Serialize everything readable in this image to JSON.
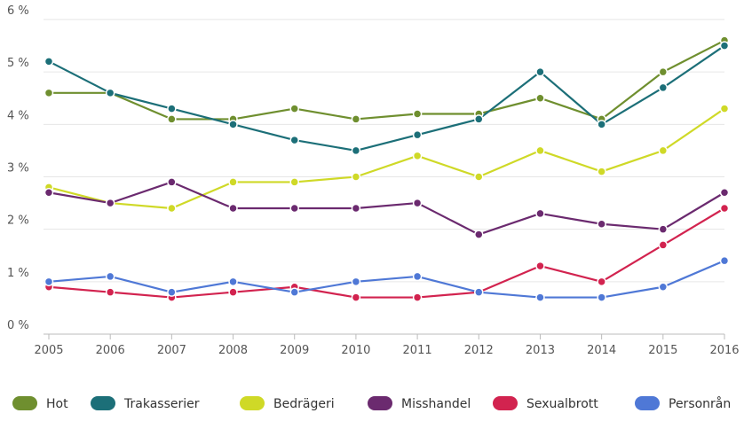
{
  "chart_data": {
    "type": "line",
    "title": "",
    "xlabel": "",
    "ylabel": "",
    "x": [
      "2005",
      "2006",
      "2007",
      "2008",
      "2009",
      "2010",
      "2011",
      "2012",
      "2013",
      "2014",
      "2015",
      "2016"
    ],
    "ylim": [
      0,
      6
    ],
    "y_ticks": [
      {
        "value": 0,
        "label": "0 %"
      },
      {
        "value": 1,
        "label": "1 %"
      },
      {
        "value": 2,
        "label": "2 %"
      },
      {
        "value": 3,
        "label": "3 %"
      },
      {
        "value": 4,
        "label": "4 %"
      },
      {
        "value": 5,
        "label": "5 %"
      },
      {
        "value": 6,
        "label": "6 %"
      }
    ],
    "grid": true,
    "legend_position": "bottom",
    "series": [
      {
        "name": "Hot",
        "color": "#6f8f2f",
        "values": [
          4.6,
          4.6,
          4.1,
          4.1,
          4.3,
          4.1,
          4.2,
          4.2,
          4.5,
          4.1,
          5.0,
          5.6
        ]
      },
      {
        "name": "Trakasserier",
        "color": "#1c6f78",
        "values": [
          5.2,
          4.6,
          4.3,
          4.0,
          3.7,
          3.5,
          3.8,
          4.1,
          5.0,
          4.0,
          4.7,
          5.5
        ]
      },
      {
        "name": "Bedrägeri",
        "color": "#cfd927",
        "values": [
          2.8,
          2.5,
          2.4,
          2.9,
          2.9,
          3.0,
          3.4,
          3.0,
          3.5,
          3.1,
          3.5,
          4.3
        ]
      },
      {
        "name": "Misshandel",
        "color": "#6b2a6f",
        "values": [
          2.7,
          2.5,
          2.9,
          2.4,
          2.4,
          2.4,
          2.5,
          1.9,
          2.3,
          2.1,
          2.0,
          2.7
        ]
      },
      {
        "name": "Sexualbrott",
        "color": "#d2234f",
        "values": [
          0.9,
          0.8,
          0.7,
          0.8,
          0.9,
          0.7,
          0.7,
          0.8,
          1.3,
          1.0,
          1.7,
          2.4
        ]
      },
      {
        "name": "Personrån",
        "color": "#4f78d6",
        "values": [
          1.0,
          1.1,
          0.8,
          1.0,
          0.8,
          1.0,
          1.1,
          0.8,
          0.7,
          0.7,
          0.9,
          1.4
        ]
      }
    ]
  }
}
